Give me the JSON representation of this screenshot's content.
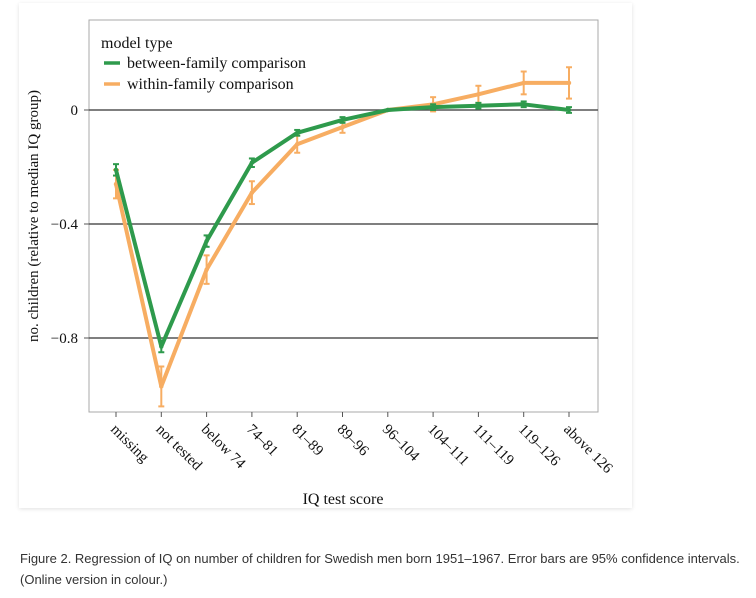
{
  "chart_data": {
    "type": "line",
    "xlabel": "IQ test score",
    "ylabel": "no. children (relative to median IQ group)",
    "categories": [
      "missing",
      "not tested",
      "below 74",
      "74–81",
      "81–89",
      "89–96",
      "96–104",
      "104–111",
      "111–119",
      "119–126",
      "above 126"
    ],
    "ylim": [
      -1.05,
      0.32
    ],
    "yticks": [
      0,
      -0.4,
      -0.8
    ],
    "ytick_labels": [
      "0",
      "−0.4",
      "−0.8"
    ],
    "grid": "horizontal major lines only",
    "legend": {
      "title": "model type",
      "placement": "top-left",
      "entries": [
        "between-family comparison",
        "within-family comparison"
      ]
    },
    "series": [
      {
        "name": "between-family comparison",
        "color": "#2e9a4c",
        "values": [
          -0.21,
          -0.83,
          -0.46,
          -0.185,
          -0.08,
          -0.035,
          0.0,
          0.01,
          0.015,
          0.02,
          0.0
        ],
        "ci_low": [
          -0.23,
          -0.85,
          -0.48,
          -0.2,
          -0.09,
          -0.045,
          0.0,
          0.0,
          0.005,
          0.01,
          -0.01
        ],
        "ci_high": [
          -0.19,
          -0.81,
          -0.44,
          -0.17,
          -0.07,
          -0.025,
          0.0,
          0.02,
          0.025,
          0.03,
          0.01
        ]
      },
      {
        "name": "within-family comparison",
        "color": "#f7ad62",
        "values": [
          -0.26,
          -0.97,
          -0.56,
          -0.29,
          -0.12,
          -0.06,
          0.0,
          0.02,
          0.055,
          0.095,
          0.095
        ],
        "ci_low": [
          -0.31,
          -1.04,
          -0.61,
          -0.33,
          -0.15,
          -0.08,
          0.0,
          -0.005,
          0.025,
          0.055,
          0.04
        ],
        "ci_high": [
          -0.21,
          -0.9,
          -0.51,
          -0.25,
          -0.09,
          -0.04,
          0.0,
          0.045,
          0.085,
          0.135,
          0.15
        ]
      }
    ]
  },
  "caption": "Figure 2. Regression of IQ on number of children for Swedish men born 1951–1967. Error bars are 95% confidence intervals. (Online version in colour.)"
}
